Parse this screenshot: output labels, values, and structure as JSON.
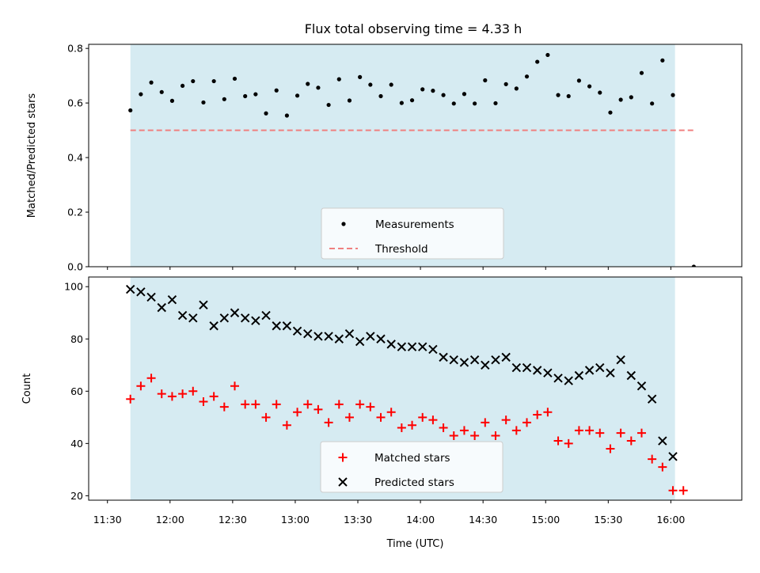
{
  "figure_title": "Flux total observing time = 4.33 h",
  "colors": {
    "shade": "#add8e6",
    "measurement": "#000000",
    "threshold": "#f08080",
    "matched": "#ff0000",
    "predicted": "#000000"
  },
  "chart_data": [
    {
      "type": "scatter",
      "title": "Flux total observing time = 4.33 h",
      "ylabel": "Matched/Predicted stars",
      "xlabel": "",
      "ylim": [
        0,
        0.815
      ],
      "xlim": [
        "11:21",
        "16:34"
      ],
      "yticks": [
        0.0,
        0.2,
        0.4,
        0.6,
        0.8
      ],
      "ytick_labels": [
        "0.0",
        "0.2",
        "0.4",
        "0.6",
        "0.8"
      ],
      "legend_position": "lower center",
      "shaded_span": [
        "11:41",
        "16:02"
      ],
      "threshold": {
        "value": 0.5,
        "x_start": "11:41",
        "x_end": "16:11"
      },
      "legend": [
        "Measurements",
        "Threshold"
      ],
      "series": [
        {
          "name": "Measurements",
          "marker": "dot",
          "x": [
            "11:41",
            "11:46",
            "11:51",
            "11:56",
            "12:01",
            "12:06",
            "12:11",
            "12:16",
            "12:21",
            "12:26",
            "12:31",
            "12:36",
            "12:41",
            "12:46",
            "12:51",
            "12:56",
            "13:01",
            "13:06",
            "13:11",
            "13:16",
            "13:21",
            "13:26",
            "13:31",
            "13:36",
            "13:41",
            "13:46",
            "13:51",
            "13:56",
            "14:01",
            "14:06",
            "14:11",
            "14:16",
            "14:21",
            "14:26",
            "14:31",
            "14:36",
            "14:41",
            "14:46",
            "14:51",
            "14:56",
            "15:01",
            "15:06",
            "15:11",
            "15:16",
            "15:21",
            "15:26",
            "15:31",
            "15:36",
            "15:41",
            "15:46",
            "15:51",
            "15:56",
            "16:01",
            "16:11"
          ],
          "y": [
            0.573,
            0.632,
            0.675,
            0.64,
            0.608,
            0.663,
            0.68,
            0.602,
            0.68,
            0.614,
            0.689,
            0.625,
            0.632,
            0.562,
            0.646,
            0.554,
            0.627,
            0.67,
            0.656,
            0.593,
            0.687,
            0.609,
            0.695,
            0.667,
            0.625,
            0.667,
            0.6,
            0.61,
            0.65,
            0.645,
            0.629,
            0.598,
            0.633,
            0.598,
            0.683,
            0.599,
            0.669,
            0.653,
            0.697,
            0.751,
            0.776,
            0.629,
            0.625,
            0.682,
            0.661,
            0.638,
            0.565,
            0.612,
            0.621,
            0.71,
            0.598,
            0.756,
            0.629,
            0.0
          ]
        }
      ]
    },
    {
      "type": "scatter",
      "title": "",
      "xlabel": "Time (UTC)",
      "ylabel": "Count",
      "ylim": [
        18.3,
        103.7
      ],
      "xlim": [
        "11:21",
        "16:34"
      ],
      "yticks": [
        20,
        40,
        60,
        80,
        100
      ],
      "ytick_labels": [
        "20",
        "40",
        "60",
        "80",
        "100"
      ],
      "xticks": [
        "11:30",
        "12:00",
        "12:30",
        "13:00",
        "13:30",
        "14:00",
        "14:30",
        "15:00",
        "15:30",
        "16:00"
      ],
      "xtick_labels": [
        "11:30",
        "12:00",
        "12:30",
        "13:00",
        "13:30",
        "14:00",
        "14:30",
        "15:00",
        "15:30",
        "16:00"
      ],
      "legend_position": "lower center",
      "shaded_span": [
        "11:41",
        "16:02"
      ],
      "legend": [
        "Matched stars",
        "Predicted stars"
      ],
      "series": [
        {
          "name": "Matched stars",
          "marker": "plus",
          "x": [
            "11:41",
            "11:46",
            "11:51",
            "11:56",
            "12:01",
            "12:06",
            "12:11",
            "12:16",
            "12:21",
            "12:26",
            "12:31",
            "12:36",
            "12:41",
            "12:46",
            "12:51",
            "12:56",
            "13:01",
            "13:06",
            "13:11",
            "13:16",
            "13:21",
            "13:26",
            "13:31",
            "13:36",
            "13:41",
            "13:46",
            "13:51",
            "13:56",
            "14:01",
            "14:06",
            "14:11",
            "14:16",
            "14:21",
            "14:26",
            "14:31",
            "14:36",
            "14:41",
            "14:46",
            "14:51",
            "14:56",
            "15:01",
            "15:06",
            "15:11",
            "15:16",
            "15:21",
            "15:26",
            "15:31",
            "15:36",
            "15:41",
            "15:46",
            "15:51",
            "15:56",
            "16:01",
            "16:06"
          ],
          "y": [
            57,
            62,
            65,
            59,
            58,
            59,
            60,
            56,
            58,
            54,
            62,
            55,
            55,
            50,
            55,
            47,
            52,
            55,
            53,
            48,
            55,
            50,
            55,
            54,
            50,
            52,
            46,
            47,
            50,
            49,
            46,
            43,
            45,
            43,
            48,
            43,
            49,
            45,
            48,
            51,
            52,
            41,
            40,
            45,
            45,
            44,
            38,
            44,
            41,
            44,
            34,
            31,
            22,
            22
          ]
        },
        {
          "name": "Predicted stars",
          "marker": "x",
          "x": [
            "11:41",
            "11:46",
            "11:51",
            "11:56",
            "12:01",
            "12:06",
            "12:11",
            "12:16",
            "12:21",
            "12:26",
            "12:31",
            "12:36",
            "12:41",
            "12:46",
            "12:51",
            "12:56",
            "13:01",
            "13:06",
            "13:11",
            "13:16",
            "13:21",
            "13:26",
            "13:31",
            "13:36",
            "13:41",
            "13:46",
            "13:51",
            "13:56",
            "14:01",
            "14:06",
            "14:11",
            "14:16",
            "14:21",
            "14:26",
            "14:31",
            "14:36",
            "14:41",
            "14:46",
            "14:51",
            "14:56",
            "15:01",
            "15:06",
            "15:11",
            "15:16",
            "15:21",
            "15:26",
            "15:31",
            "15:36",
            "15:41",
            "15:46",
            "15:51",
            "15:56",
            "16:01"
          ],
          "y": [
            99,
            98,
            96,
            92,
            95,
            89,
            88,
            93,
            85,
            88,
            90,
            88,
            87,
            89,
            85,
            85,
            83,
            82,
            81,
            81,
            80,
            82,
            79,
            81,
            80,
            78,
            77,
            77,
            77,
            76,
            73,
            72,
            71,
            72,
            70,
            72,
            73,
            69,
            69,
            68,
            67,
            65,
            64,
            66,
            68,
            69,
            67,
            72,
            66,
            62,
            57,
            41,
            35
          ]
        }
      ]
    }
  ]
}
